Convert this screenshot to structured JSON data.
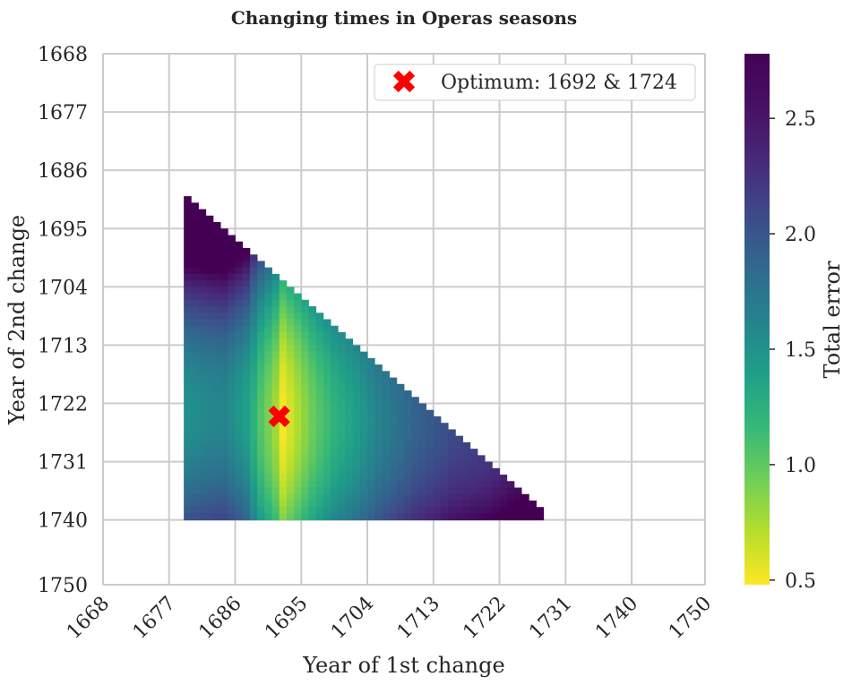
{
  "chart_data": {
    "type": "heatmap",
    "title": "Changing times in Operas seasons",
    "xlabel": "Year of 1st change",
    "ylabel": "Year of 2nd change",
    "x_ticks": [
      "1668",
      "1677",
      "1686",
      "1695",
      "1704",
      "1713",
      "1722",
      "1731",
      "1740",
      "1750"
    ],
    "y_ticks": [
      "1668",
      "1677",
      "1686",
      "1695",
      "1704",
      "1713",
      "1722",
      "1731",
      "1740",
      "1750"
    ],
    "xlim": [
      1668,
      1750
    ],
    "ylim": [
      1668,
      1750
    ],
    "y_inverted": true,
    "grid": true,
    "colormap": "viridis_r",
    "colorbar": {
      "label": "Total error",
      "min": 0.48,
      "max": 2.78,
      "ticks": [
        "0.5",
        "1.0",
        "1.5",
        "2.0",
        "2.5"
      ],
      "tick_values": [
        0.5,
        1.0,
        1.5,
        2.0,
        2.5
      ]
    },
    "data_region": {
      "x_range": [
        1679,
        1727
      ],
      "y_range": [
        1687,
        1739
      ],
      "note_shape": "valid cells satisfy x <= y - 11"
    },
    "error_profile_by_first_change": {
      "x": [
        1679,
        1681,
        1684,
        1687,
        1689,
        1691,
        1692,
        1694,
        1696,
        1699,
        1702,
        1705,
        1710,
        1715,
        1720,
        1724,
        1727
      ],
      "error": [
        1.7,
        1.75,
        1.8,
        1.55,
        1.1,
        0.8,
        0.5,
        0.75,
        1.0,
        1.3,
        1.5,
        1.75,
        2.05,
        2.25,
        2.35,
        2.5,
        2.78
      ]
    },
    "optimum": {
      "x": 1692,
      "y": 1724,
      "marker": "X",
      "color": "#ff0000"
    },
    "legend": {
      "label": "Optimum: 1692 & 1724",
      "position": "top-right"
    }
  }
}
